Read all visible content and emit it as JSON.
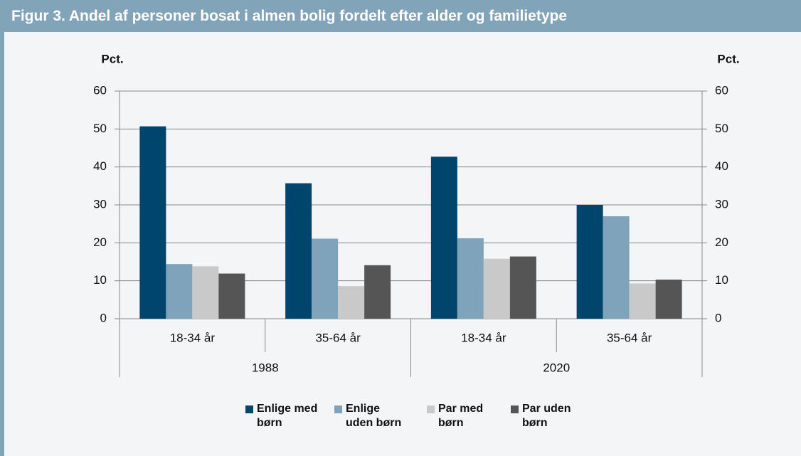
{
  "chart_data": {
    "type": "bar",
    "title": "Figur 3. Andel af personer bosat i almen bolig fordelt efter alder og familietype",
    "ylabel": "Pct.",
    "y2label": "Pct.",
    "categories": [
      "18-34 år",
      "35-64 år",
      "18-34 år",
      "35-64 år"
    ],
    "category_groups": [
      "1988",
      "2020"
    ],
    "series": [
      {
        "name": "Enlige med børn",
        "color": "#00456b",
        "values": [
          50.7,
          35.7,
          42.7,
          30.0
        ]
      },
      {
        "name": "Enlige uden børn",
        "color": "#7fa3bb",
        "values": [
          14.4,
          21.1,
          21.2,
          27.0
        ]
      },
      {
        "name": "Par med børn",
        "color": "#c9c9c9",
        "values": [
          13.8,
          8.6,
          15.8,
          9.3
        ]
      },
      {
        "name": "Par uden børn",
        "color": "#555555",
        "values": [
          11.9,
          14.1,
          16.4,
          10.3
        ]
      }
    ],
    "ylim": [
      0,
      60
    ],
    "yticks": [
      0,
      10,
      20,
      30,
      40,
      50,
      60
    ],
    "y2lim": [
      0,
      60
    ],
    "y2ticks": [
      0,
      10,
      20,
      30,
      40,
      50,
      60
    ],
    "grid": true,
    "legend": "bottom"
  }
}
